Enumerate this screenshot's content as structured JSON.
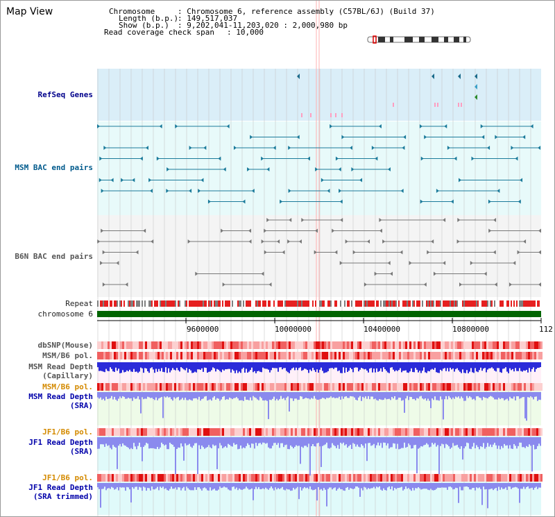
{
  "view_title": "Map View",
  "info": {
    "chromosome_label": "Chromosome",
    "chromosome_value": ": Chromosome 6, reference assembly (C57BL/6J) (Build 37)",
    "length_label": "Length (b.p.)",
    "length_value": ": 149,517,037",
    "show_label": "Show (b.p.)",
    "show_value": ": 9,202,041-11,203,020 : 2,000,980 bp",
    "coverage_label": "Read coverage check span",
    "coverage_value": ": 10,000"
  },
  "tracks": {
    "refseq": "RefSeq Genes",
    "msm_bac": "MSM BAC end pairs",
    "b6n_bac": "B6N BAC end pairs",
    "repeat": "Repeat",
    "chromosome": "chromosome 6",
    "dbsnp": "dbSNP(Mouse)",
    "msm_b6_pol_1": "MSM/B6 pol.",
    "msm_depth_cap_1": "MSM Read Depth",
    "msm_depth_cap_2": "(Capillary)",
    "msm_b6_pol_2": "MSM/B6 pol.",
    "msm_depth_sra_1": "MSM Read Depth",
    "msm_depth_sra_2": "(SRA)",
    "jf1_b6_pol_1": "JF1/B6 pol.",
    "jf1_depth_sra_1": "JF1 Read Depth",
    "jf1_depth_sra_2": "(SRA)",
    "jf1_b6_pol_2": "JF1/B6 pol.",
    "jf1_depth_trim_1": "JF1 Read Depth",
    "jf1_depth_trim_2": "(SRA trimmed)"
  },
  "axis": {
    "ticks": [
      "9600000",
      "10000000",
      "10400000",
      "10800000",
      "112"
    ]
  },
  "colors": {
    "refseq_bg": "#daeef8",
    "bac_bg": "#e8fafa",
    "chromosome_bar": "#006400",
    "repeat_red": "#e62020",
    "repeat_gray": "#808080",
    "msm_teal": "#1a7a9a",
    "b6n_gray": "#777777",
    "depth_dark": "#2b2bd9",
    "depth_light": "#8a8aee"
  }
}
